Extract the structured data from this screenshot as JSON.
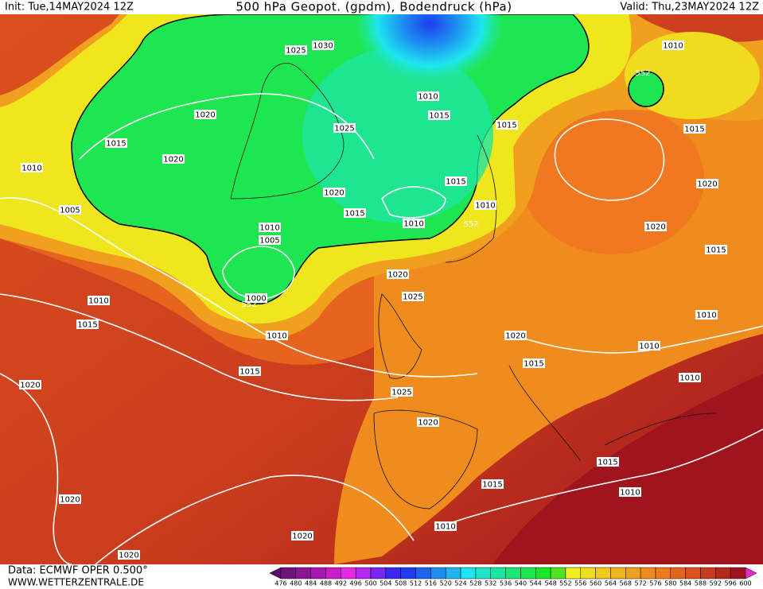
{
  "header": {
    "init": "Init: Tue,14MAY2024 12Z",
    "title": "500 hPa Geopot. (gpdm), Bodendruck (hPa)",
    "valid": "Valid: Thu,23MAY2024 12Z"
  },
  "footer": {
    "data": "Data: ECMWF OPER 0.500°",
    "site": "WWW.WETTERZENTRALE.DE"
  },
  "isobar_labels": [
    1010,
    1005,
    1015,
    1020,
    1020,
    1025,
    1030,
    1010,
    1015,
    1025,
    1020,
    1015,
    1010,
    1015,
    1010,
    1015,
    1010,
    1015,
    1020,
    1020,
    1015,
    1010,
    1005,
    1000,
    1010,
    1015,
    1010,
    1015,
    1020,
    1025,
    1020,
    1010,
    1010,
    1015,
    1010,
    1025,
    1020,
    1020,
    1015,
    1015,
    1010,
    1020,
    1010,
    1020,
    1020
  ],
  "contour_labels": [
    552,
    552,
    552
  ],
  "colorbar": {
    "labels": [
      476,
      480,
      484,
      488,
      492,
      496,
      500,
      504,
      508,
      512,
      516,
      520,
      524,
      528,
      532,
      536,
      540,
      544,
      548,
      552,
      556,
      560,
      564,
      568,
      572,
      576,
      580,
      584,
      588,
      592,
      596,
      600
    ],
    "colors": [
      "#5a0a6e",
      "#6e1280",
      "#8c1496",
      "#a818b0",
      "#c81ec8",
      "#e628e6",
      "#b428f0",
      "#7828f0",
      "#3c28f0",
      "#1e3cf0",
      "#1e64f0",
      "#1e8cf0",
      "#1eb4f0",
      "#1ee6f0",
      "#1ee6c8",
      "#1ee6a0",
      "#1ee678",
      "#1ee650",
      "#1ee628",
      "#50e61e",
      "#f0f01e",
      "#f0dc1e",
      "#f0c81e",
      "#f0b41e",
      "#f0a01e",
      "#f08c1e",
      "#f0781e",
      "#e6641e",
      "#dc501e",
      "#c83c1e",
      "#b4281e",
      "#a0141e",
      "#e628c8"
    ]
  }
}
